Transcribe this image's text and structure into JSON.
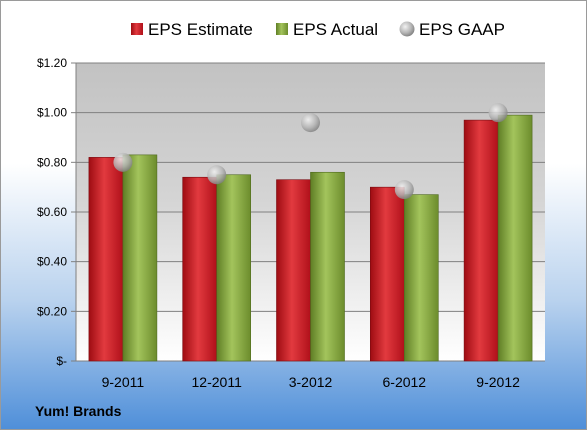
{
  "brand_label": "Yum! Brands",
  "colors": {
    "estimate": "#c9121b",
    "actual": "#7fa33a",
    "gaap": "#b8b8b8"
  },
  "chart_data": {
    "type": "bar",
    "categories": [
      "9-2011",
      "12-2011",
      "3-2012",
      "6-2012",
      "9-2012"
    ],
    "series": [
      {
        "name": "EPS Estimate",
        "type": "bar",
        "values": [
          0.82,
          0.74,
          0.73,
          0.7,
          0.97
        ]
      },
      {
        "name": "EPS Actual",
        "type": "bar",
        "values": [
          0.83,
          0.75,
          0.76,
          0.67,
          0.99
        ]
      },
      {
        "name": "EPS GAAP",
        "type": "scatter",
        "values": [
          0.8,
          0.75,
          0.96,
          0.69,
          1.0
        ]
      }
    ],
    "ylim": [
      0,
      1.2
    ],
    "yticks": [
      0,
      0.2,
      0.4,
      0.6,
      0.8,
      1.0,
      1.2
    ],
    "ytick_labels": [
      "$-",
      "$0.20",
      "$0.40",
      "$0.60",
      "$0.80",
      "$1.00",
      "$1.20"
    ],
    "grid": true,
    "legend_position": "top"
  }
}
